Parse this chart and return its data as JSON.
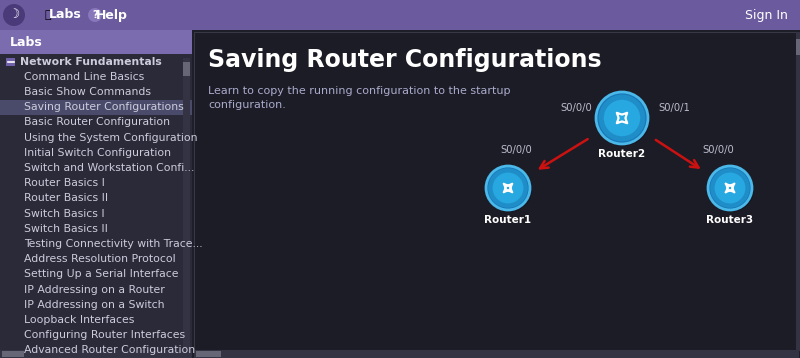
{
  "title": "Saving Router Configurations",
  "subtitle": "Learn to copy the running configuration to the startup\nconfiguration.",
  "topbar_color": "#6b5b9e",
  "signin_text": "Sign In",
  "left_panel_bg": "#2a2a38",
  "left_panel_header_bg": "#7b6cb0",
  "left_panel_header_text": "Labs",
  "main_bg": "#1e1e28",
  "menu_items": [
    "Network Fundamentals",
    "Command Line Basics",
    "Basic Show Commands",
    "Saving Router Configurations",
    "Basic Router Configuration",
    "Using the System Configuration",
    "Initial Switch Configuration",
    "Switch and Workstation Confi...",
    "Router Basics I",
    "Router Basics II",
    "Switch Basics I",
    "Switch Basics II",
    "Testing Connectivity with Trace...",
    "Address Resolution Protocol",
    "Setting Up a Serial Interface",
    "IP Addressing on a Router",
    "IP Addressing on a Switch",
    "Loopback Interfaces",
    "Configuring Router Interfaces",
    "Advanced Router Configuration..."
  ],
  "highlighted_item": "Saving Router Configurations",
  "menu_text_color": "#ccccdd",
  "router_outer_color": "#1a7ab8",
  "router_inner_color": "#2a9fd8",
  "router_edge_color": "#5bbde8",
  "arrow_color": "#cc1111",
  "link_label_color": "#bbbbcc",
  "router2_left_label": "S0/0/0",
  "router2_right_label": "S0/0/1",
  "router1_label": "S0/0/0",
  "router3_label": "S0/0/0"
}
